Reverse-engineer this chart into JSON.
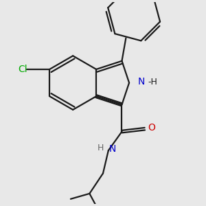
{
  "background_color": "#e8e8e8",
  "line_color": "#1a1a1a",
  "lw": 1.6,
  "cl_color": "#00aa00",
  "n_color": "#0000cc",
  "o_color": "#cc0000",
  "h_color": "#666666",
  "xlim": [
    -3.0,
    3.5
  ],
  "ylim": [
    -4.0,
    3.5
  ]
}
